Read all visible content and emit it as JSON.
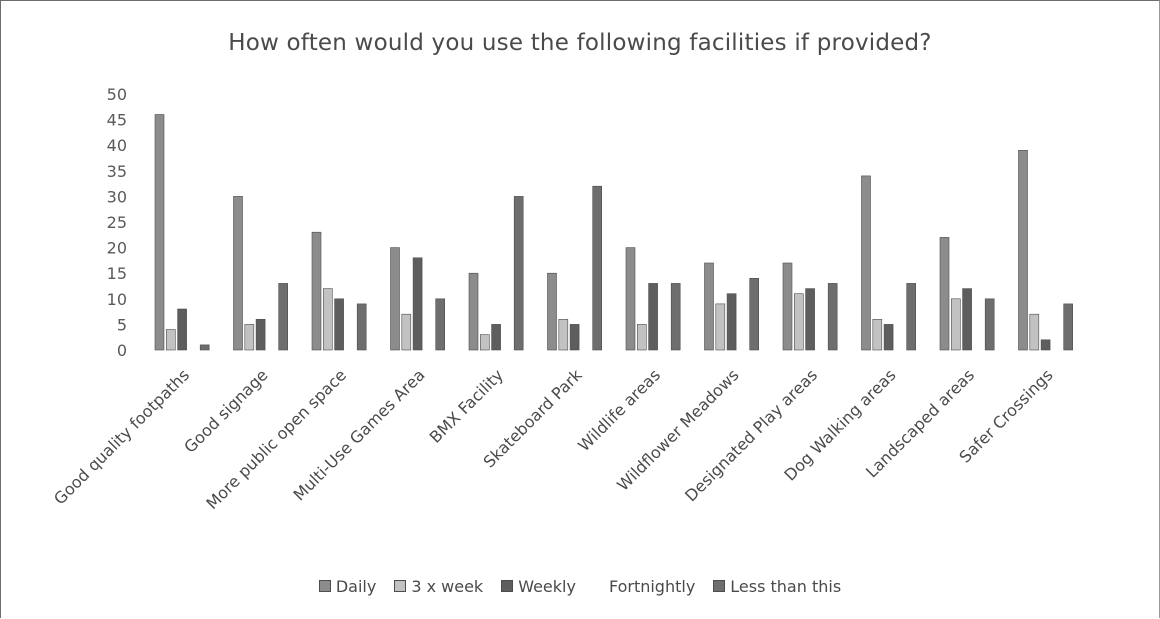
{
  "chart_data": {
    "type": "bar",
    "title": "How often would you use the following facilities if provided?",
    "xlabel": "",
    "ylabel": "",
    "ylim": [
      0,
      50
    ],
    "yticks": [
      0,
      5,
      10,
      15,
      20,
      25,
      30,
      35,
      40,
      45,
      50
    ],
    "grid": false,
    "legend_position": "bottom",
    "categories": [
      "Good quality footpaths",
      "Good signage",
      "More public open space",
      "Multi-Use Games Area",
      "BMX Facility",
      "Skateboard Park",
      "Wildlife areas",
      "Wildflower Meadows",
      "Designated Play areas",
      "Dog Walking areas",
      "Landscaped areas",
      "Safer Crossings"
    ],
    "series": [
      {
        "name": "Daily",
        "color": "#8c8c8c",
        "values": [
          46,
          30,
          23,
          20,
          15,
          15,
          20,
          17,
          17,
          34,
          22,
          39
        ]
      },
      {
        "name": "3 x week",
        "color": "#c2c2c2",
        "values": [
          4,
          5,
          12,
          7,
          3,
          6,
          5,
          9,
          11,
          6,
          10,
          7
        ]
      },
      {
        "name": "Weekly",
        "color": "#5e5e5e",
        "values": [
          8,
          6,
          10,
          18,
          5,
          5,
          13,
          11,
          12,
          5,
          12,
          2
        ]
      },
      {
        "name": "Fortnightly",
        "color": "#ffffff",
        "values": [
          0,
          0,
          0,
          0,
          0,
          0,
          0,
          0,
          0,
          0,
          0,
          0
        ]
      },
      {
        "name": "Less than this",
        "color": "#6e6e6e",
        "values": [
          1,
          13,
          9,
          10,
          30,
          32,
          13,
          14,
          13,
          13,
          10,
          9
        ]
      }
    ]
  }
}
